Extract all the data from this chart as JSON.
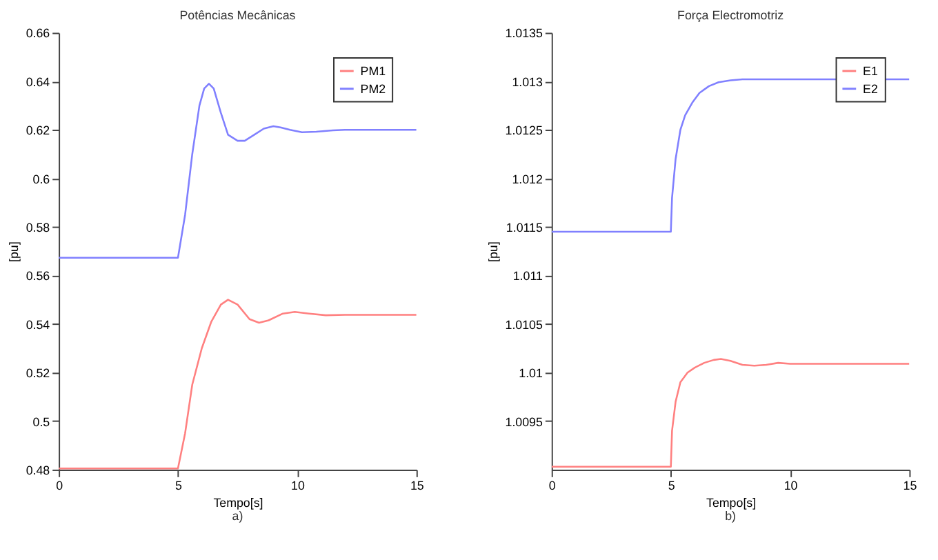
{
  "chart_data": [
    {
      "type": "line",
      "title": "Potências Mecânicas",
      "xlabel": "Tempo[s]",
      "ylabel": "[pu]",
      "annotations": [
        "a)"
      ],
      "xlim": [
        0,
        15
      ],
      "xticks": [
        0,
        5,
        10,
        15
      ],
      "ylim": [
        0.48,
        0.66
      ],
      "yticks": [
        0.48,
        0.5,
        0.52,
        0.54,
        0.56,
        0.58,
        0.6,
        0.62,
        0.64,
        0.66
      ],
      "grid": false,
      "legend": "top right",
      "line_style": "solid",
      "series": [
        {
          "name": "PM1",
          "color": "#ff8080",
          "x": [
            0,
            5,
            5.3,
            5.6,
            6.0,
            6.4,
            6.8,
            7.1,
            7.5,
            8.0,
            8.4,
            8.8,
            9.4,
            9.9,
            10.5,
            11.2,
            12,
            15
          ],
          "values": [
            0.4805,
            0.4805,
            0.495,
            0.515,
            0.53,
            0.541,
            0.548,
            0.55,
            0.548,
            0.542,
            0.5405,
            0.5415,
            0.5443,
            0.545,
            0.5443,
            0.5436,
            0.5438,
            0.5438
          ]
        },
        {
          "name": "PM2",
          "color": "#8080ff",
          "x": [
            0,
            5,
            5.3,
            5.6,
            5.9,
            6.1,
            6.3,
            6.5,
            6.8,
            7.1,
            7.5,
            7.8,
            8.2,
            8.6,
            9.0,
            9.3,
            9.7,
            10.2,
            10.8,
            11.5,
            12,
            15
          ],
          "values": [
            0.5673,
            0.5673,
            0.585,
            0.61,
            0.63,
            0.637,
            0.639,
            0.637,
            0.627,
            0.618,
            0.6155,
            0.6155,
            0.618,
            0.6205,
            0.6215,
            0.621,
            0.62,
            0.619,
            0.6192,
            0.6198,
            0.62,
            0.62
          ]
        }
      ]
    },
    {
      "type": "line",
      "title": "Força Electromotriz",
      "xlabel": "Tempo[s]",
      "ylabel": "[pu]",
      "annotations": [
        "b)"
      ],
      "xlim": [
        0,
        15
      ],
      "xticks": [
        0,
        5,
        10,
        15
      ],
      "ylim": [
        1.009,
        1.0135
      ],
      "yticks": [
        1.0095,
        1.01,
        1.0105,
        1.011,
        1.0115,
        1.012,
        1.0125,
        1.013,
        1.0135
      ],
      "grid": false,
      "legend": "top right",
      "line_style": "solid",
      "series": [
        {
          "name": "E1",
          "color": "#ff8080",
          "x": [
            0,
            5,
            5.05,
            5.2,
            5.4,
            5.7,
            6.0,
            6.4,
            6.8,
            7.1,
            7.5,
            8.0,
            8.5,
            9.0,
            9.5,
            10,
            11,
            15
          ],
          "values": [
            1.00903,
            1.00903,
            1.0094,
            1.0097,
            1.0099,
            1.01,
            1.01005,
            1.0101,
            1.01013,
            1.01014,
            1.01012,
            1.01008,
            1.01007,
            1.01008,
            1.0101,
            1.01009,
            1.01009,
            1.01009
          ]
        },
        {
          "name": "E2",
          "color": "#8080ff",
          "x": [
            0,
            5,
            5.05,
            5.2,
            5.4,
            5.6,
            5.9,
            6.2,
            6.6,
            7.0,
            7.5,
            8,
            9,
            15
          ],
          "values": [
            1.01145,
            1.01145,
            1.0118,
            1.0122,
            1.0125,
            1.01265,
            1.01278,
            1.01288,
            1.01295,
            1.01299,
            1.01301,
            1.01302,
            1.01302,
            1.01302
          ]
        }
      ]
    }
  ]
}
